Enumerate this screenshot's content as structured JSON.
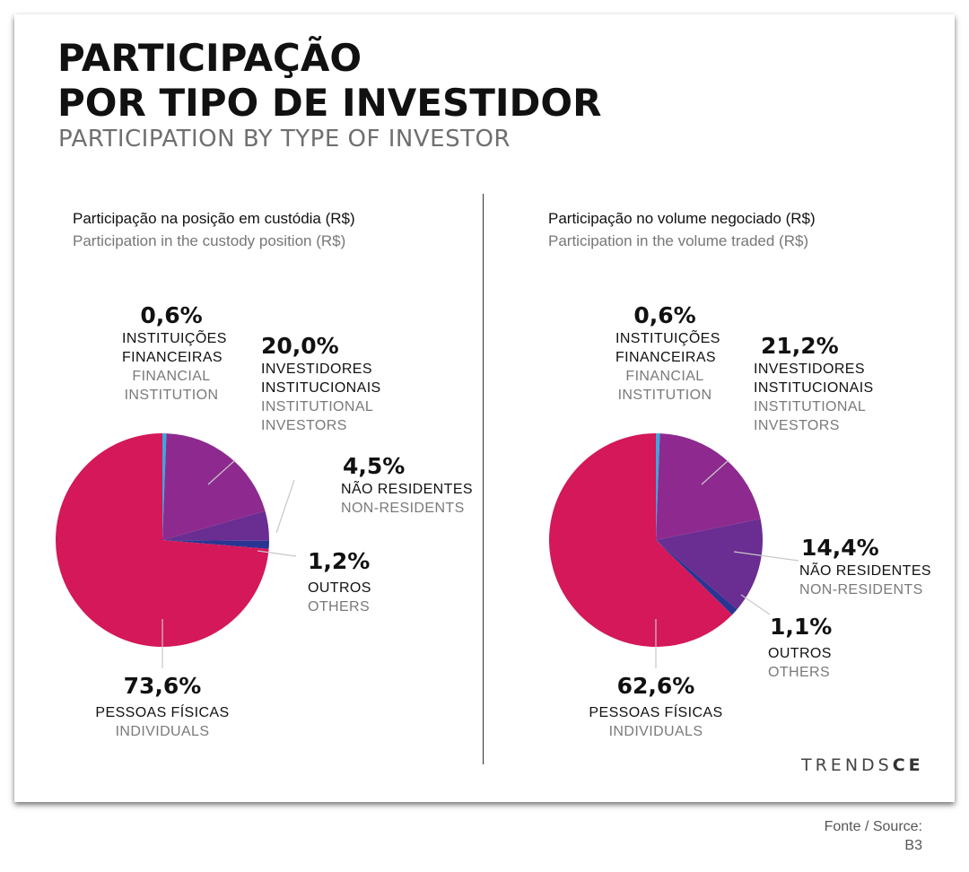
{
  "title": {
    "line1": "PARTICIPAÇÃO",
    "line2": "POR TIPO DE INVESTIDOR",
    "subtitle": "PARTICIPATION BY TYPE OF INVESTOR"
  },
  "colors": {
    "financial_institutions": "#3aa8df",
    "institutional_investors": "#8e2a8f",
    "non_residents": "#6a2d91",
    "others": "#2a3592",
    "individuals": "#d4185a"
  },
  "chart_data": [
    {
      "type": "pie",
      "title": "Participação na posição em custódia (R$)",
      "subtitle": "Participation in the custody position (R$)",
      "slices": [
        {
          "key": "financial_institutions",
          "value": 0.6,
          "value_label": "0,6%",
          "label_pt": [
            "INSTITUIÇÕES",
            "FINANCEIRAS"
          ],
          "label_en": [
            "FINANCIAL",
            "INSTITUTION"
          ]
        },
        {
          "key": "institutional_investors",
          "value": 20.0,
          "value_label": "20,0%",
          "label_pt": [
            "INVESTIDORES",
            "INSTITUCIONAIS"
          ],
          "label_en": [
            "INSTITUTIONAL",
            "INVESTORS"
          ]
        },
        {
          "key": "non_residents",
          "value": 4.5,
          "value_label": "4,5%",
          "label_pt": [
            "NÃO RESIDENTES"
          ],
          "label_en": [
            "NON-RESIDENTS"
          ]
        },
        {
          "key": "others",
          "value": 1.2,
          "value_label": "1,2%",
          "label_pt": [
            "OUTROS"
          ],
          "label_en": [
            "OTHERS"
          ]
        },
        {
          "key": "individuals",
          "value": 73.6,
          "value_label": "73,6%",
          "label_pt": [
            "PESSOAS FÍSICAS"
          ],
          "label_en": [
            "INDIVIDUALS"
          ]
        }
      ]
    },
    {
      "type": "pie",
      "title": "Participação no volume negociado (R$)",
      "subtitle": "Participation in the volume traded (R$)",
      "slices": [
        {
          "key": "financial_institutions",
          "value": 0.6,
          "value_label": "0,6%",
          "label_pt": [
            "INSTITUIÇÕES",
            "FINANCEIRAS"
          ],
          "label_en": [
            "FINANCIAL",
            "INSTITUTION"
          ]
        },
        {
          "key": "institutional_investors",
          "value": 21.2,
          "value_label": "21,2%",
          "label_pt": [
            "INVESTIDORES",
            "INSTITUCIONAIS"
          ],
          "label_en": [
            "INSTITUTIONAL",
            "INVESTORS"
          ]
        },
        {
          "key": "non_residents",
          "value": 14.4,
          "value_label": "14,4%",
          "label_pt": [
            "NÃO RESIDENTES"
          ],
          "label_en": [
            "NON-RESIDENTS"
          ]
        },
        {
          "key": "others",
          "value": 1.1,
          "value_label": "1,1%",
          "label_pt": [
            "OUTROS"
          ],
          "label_en": [
            "OTHERS"
          ]
        },
        {
          "key": "individuals",
          "value": 62.6,
          "value_label": "62,6%",
          "label_pt": [
            "PESSOAS FÍSICAS"
          ],
          "label_en": [
            "INDIVIDUALS"
          ]
        }
      ]
    }
  ],
  "logo": {
    "light": "TRENDS",
    "bold": "CE"
  },
  "source": {
    "line1": "Fonte / Source:",
    "line2": "B3"
  }
}
